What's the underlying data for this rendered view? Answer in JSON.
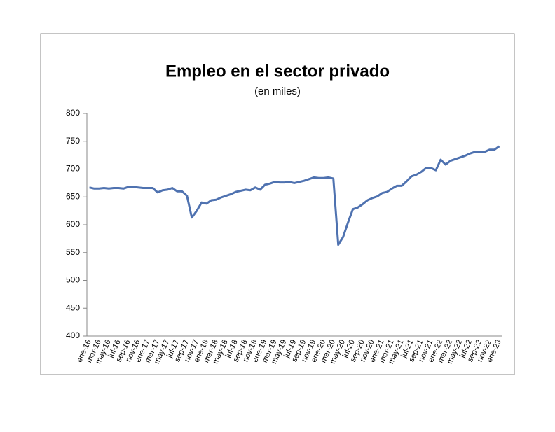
{
  "chart_data": {
    "type": "line",
    "title": "Empleo en el sector privado",
    "subtitle": "(en miles)",
    "categories": [
      "ene-16",
      null,
      "mar-16",
      null,
      "may-16",
      null,
      "jul-16",
      null,
      "sep-16",
      null,
      "nov-16",
      null,
      "ene-17",
      null,
      "mar-17",
      null,
      "may-17",
      null,
      "jul-17",
      null,
      "sep-17",
      null,
      "nov-17",
      null,
      "ene-18",
      null,
      "mar-18",
      null,
      "may-18",
      null,
      "jul-18",
      null,
      "sep-18",
      null,
      "nov-18",
      null,
      "ene-19",
      null,
      "mar-19",
      null,
      "may-19",
      null,
      "jul-19",
      null,
      "sep-19",
      null,
      "nov-19",
      null,
      "ene-20",
      null,
      "mar-20",
      null,
      "may-20",
      null,
      "jul-20",
      null,
      "sep-20",
      null,
      "nov-20",
      null,
      "ene-21",
      null,
      "mar-21",
      null,
      "may-21",
      null,
      "jul-21",
      null,
      "sep-21",
      null,
      "nov-21",
      null,
      "ene-22",
      null,
      "mar-22",
      null,
      "may-22",
      null,
      "jul-22",
      null,
      "sep-22",
      null,
      "nov-22",
      null,
      "ene-23"
    ],
    "series": [
      {
        "color": "#4f72b0",
        "values": [
          667,
          665,
          665,
          666,
          665,
          666,
          666,
          665,
          668,
          668,
          667,
          666,
          666,
          666,
          658,
          662,
          663,
          666,
          660,
          660,
          652,
          613,
          625,
          640,
          638,
          644,
          645,
          649,
          652,
          655,
          659,
          661,
          663,
          662,
          667,
          663,
          672,
          674,
          677,
          676,
          676,
          677,
          675,
          677,
          679,
          682,
          685,
          684,
          684,
          685,
          683,
          564,
          578,
          604,
          628,
          631,
          637,
          644,
          648,
          651,
          657,
          659,
          665,
          670,
          670,
          678,
          687,
          690,
          695,
          702,
          702,
          698,
          717,
          708,
          715,
          718,
          721,
          724,
          728,
          731,
          731,
          731,
          735,
          735,
          741
        ]
      }
    ],
    "ylim": [
      400,
      800
    ],
    "yticks": [
      400,
      450,
      500,
      550,
      600,
      650,
      700,
      750,
      800
    ],
    "grid": false
  }
}
